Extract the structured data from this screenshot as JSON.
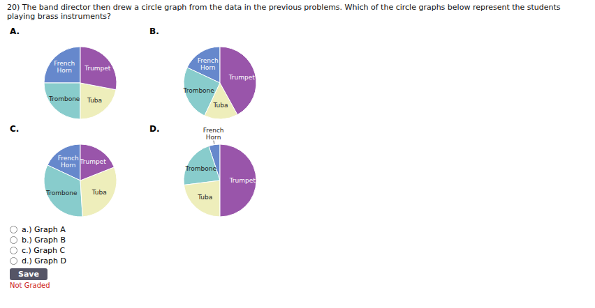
{
  "title": "20) The band director then drew a circle graph from the data in the previous problems. Which of the circle graphs below represent the students playing brass instruments?",
  "chart_data": [
    {
      "type": "pie",
      "title": "A.",
      "categories": [
        "French\nHorn",
        "Trombone",
        "Tuba",
        "Trumpet"
      ],
      "values": [
        25,
        25,
        22,
        28
      ],
      "colors": [
        "#6688cc",
        "#88cccc",
        "#eeeebb",
        "#9955aa"
      ]
    },
    {
      "type": "pie",
      "title": "B.",
      "categories": [
        "French\nHorn",
        "Trombone",
        "Tuba",
        "Trumpet"
      ],
      "values": [
        18,
        25,
        15,
        42
      ],
      "colors": [
        "#6688cc",
        "#88cccc",
        "#eeeebb",
        "#9955aa"
      ]
    },
    {
      "type": "pie",
      "title": "C.",
      "categories": [
        "French\nHorn",
        "Trombone",
        "Tuba",
        "Trumpet"
      ],
      "values": [
        18,
        33,
        30,
        19
      ],
      "colors": [
        "#6688cc",
        "#88cccc",
        "#eeeebb",
        "#9955aa"
      ]
    },
    {
      "type": "pie",
      "title": "D.",
      "categories": [
        "French\nHorn",
        "Trombone",
        "Tuba",
        "Trumpet"
      ],
      "values": [
        5,
        22,
        23,
        50
      ],
      "colors": [
        "#6688cc",
        "#88cccc",
        "#eeeebb",
        "#9955aa"
      ]
    }
  ],
  "annotations": [
    "a.) Graph A",
    "b.) Graph B",
    "c.) Graph C",
    "d.) Graph D",
    "Save",
    "Not Graded"
  ]
}
